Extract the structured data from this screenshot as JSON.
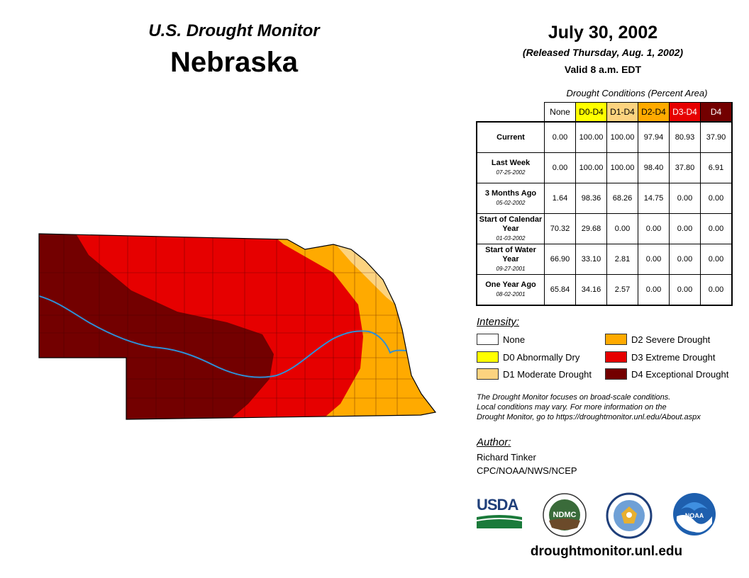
{
  "header": {
    "subtitle": "U.S. Drought Monitor",
    "state": "Nebraska",
    "date": "July 30, 2002",
    "released": "(Released Thursday, Aug. 1, 2002)",
    "valid": "Valid 8 a.m. EDT"
  },
  "table": {
    "caption": "Drought Conditions (Percent Area)",
    "columns": [
      "None",
      "D0-D4",
      "D1-D4",
      "D2-D4",
      "D3-D4",
      "D4"
    ],
    "column_colors": [
      "#ffffff",
      "#ffff00",
      "#fcd37f",
      "#ffaa00",
      "#e60000",
      "#730000"
    ],
    "rows": [
      {
        "label": "Current",
        "date": "",
        "values": [
          "0.00",
          "100.00",
          "100.00",
          "97.94",
          "80.93",
          "37.90"
        ]
      },
      {
        "label": "Last Week",
        "date": "07-25-2002",
        "values": [
          "0.00",
          "100.00",
          "100.00",
          "98.40",
          "37.80",
          "6.91"
        ]
      },
      {
        "label": "3 Months Ago",
        "date": "05-02-2002",
        "values": [
          "1.64",
          "98.36",
          "68.26",
          "14.75",
          "0.00",
          "0.00"
        ]
      },
      {
        "label": "Start of Calendar Year",
        "date": "01-03-2002",
        "values": [
          "70.32",
          "29.68",
          "0.00",
          "0.00",
          "0.00",
          "0.00"
        ]
      },
      {
        "label": "Start of Water Year",
        "date": "09-27-2001",
        "values": [
          "66.90",
          "33.10",
          "2.81",
          "0.00",
          "0.00",
          "0.00"
        ]
      },
      {
        "label": "One Year Ago",
        "date": "08-02-2001",
        "values": [
          "65.84",
          "34.16",
          "2.57",
          "0.00",
          "0.00",
          "0.00"
        ]
      }
    ]
  },
  "legend": {
    "title": "Intensity:",
    "items": [
      {
        "label": "None",
        "color": "#ffffff"
      },
      {
        "label": "D0 Abnormally Dry",
        "color": "#ffff00"
      },
      {
        "label": "D1 Moderate Drought",
        "color": "#fcd37f"
      },
      {
        "label": "D2 Severe Drought",
        "color": "#ffaa00"
      },
      {
        "label": "D3 Extreme Drought",
        "color": "#e60000"
      },
      {
        "label": "D4 Exceptional Drought",
        "color": "#730000"
      }
    ]
  },
  "note": {
    "line1": "The Drought Monitor focuses on broad-scale conditions.",
    "line2": "Local conditions may vary. For more information on the",
    "line3": "Drought Monitor, go to https://droughtmonitor.unl.edu/About.aspx"
  },
  "author": {
    "title": "Author:",
    "name": "Richard Tinker",
    "org": "CPC/NOAA/NWS/NCEP"
  },
  "logos": {
    "usda": "USDA",
    "ndmc": "NDMC",
    "noaa": "NOAA"
  },
  "url": "droughtmonitor.unl.edu"
}
